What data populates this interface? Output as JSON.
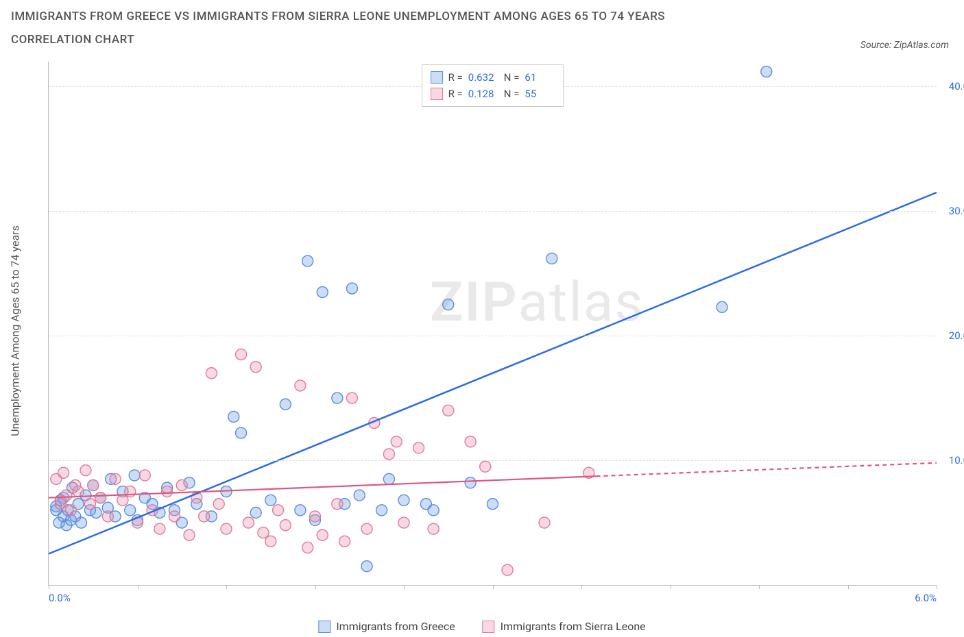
{
  "title_line1": "IMMIGRANTS FROM GREECE VS IMMIGRANTS FROM SIERRA LEONE UNEMPLOYMENT AMONG AGES 65 TO 74 YEARS",
  "title_line2": "CORRELATION CHART",
  "source_prefix": "Source: ",
  "source_name": "ZipAtlas.com",
  "y_axis_label": "Unemployment Among Ages 65 to 74 years",
  "watermark_bold": "ZIP",
  "watermark_rest": "atlas",
  "chart": {
    "type": "scatter",
    "xlim": [
      0,
      6
    ],
    "ylim": [
      0,
      42
    ],
    "x_tick_positions": [
      0,
      0.6,
      1.2,
      1.8,
      2.4,
      3.0,
      3.6,
      4.2,
      4.8,
      5.4,
      6.0
    ],
    "x_tick_labels_shown": {
      "0": "0.0%",
      "6": "6.0%"
    },
    "y_ticks": [
      10,
      20,
      30,
      40
    ],
    "y_tick_labels": [
      "10.0%",
      "20.0%",
      "30.0%",
      "40.0%"
    ],
    "background_color": "#ffffff",
    "grid_color": "#dddddd",
    "axis_color": "#bbbbbb",
    "tick_label_color": "#2d6cdf",
    "marker_radius": 8,
    "marker_stroke_width": 1.4,
    "series": [
      {
        "name": "Immigrants from Greece",
        "fill": "rgba(109,158,235,0.35)",
        "stroke": "#5b8dd6",
        "line_color": "#2d6cdf",
        "line_width": 2.5,
        "trend": {
          "x1": 0,
          "y1": 2.5,
          "x2": 6,
          "y2": 31.5,
          "dashed_from_x": null
        },
        "R": "0.632",
        "N": "61",
        "points": [
          [
            0.05,
            6.3
          ],
          [
            0.07,
            5.0
          ],
          [
            0.08,
            6.8
          ],
          [
            0.1,
            5.5
          ],
          [
            0.1,
            7.0
          ],
          [
            0.12,
            4.8
          ],
          [
            0.13,
            6.0
          ],
          [
            0.15,
            5.2
          ],
          [
            0.16,
            7.8
          ],
          [
            0.18,
            5.5
          ],
          [
            0.2,
            6.5
          ],
          [
            0.22,
            5.0
          ],
          [
            0.25,
            7.2
          ],
          [
            0.28,
            6.0
          ],
          [
            0.3,
            8.0
          ],
          [
            0.32,
            5.8
          ],
          [
            0.35,
            7.0
          ],
          [
            0.4,
            6.2
          ],
          [
            0.42,
            8.5
          ],
          [
            0.45,
            5.5
          ],
          [
            0.5,
            7.5
          ],
          [
            0.55,
            6.0
          ],
          [
            0.58,
            8.8
          ],
          [
            0.6,
            5.2
          ],
          [
            0.65,
            7.0
          ],
          [
            0.7,
            6.5
          ],
          [
            0.75,
            5.8
          ],
          [
            0.8,
            7.8
          ],
          [
            0.85,
            6.0
          ],
          [
            0.9,
            5.0
          ],
          [
            0.95,
            8.2
          ],
          [
            1.0,
            6.5
          ],
          [
            1.1,
            5.5
          ],
          [
            1.2,
            7.5
          ],
          [
            1.25,
            13.5
          ],
          [
            1.3,
            12.2
          ],
          [
            1.4,
            5.8
          ],
          [
            1.5,
            6.8
          ],
          [
            1.6,
            14.5
          ],
          [
            1.7,
            6.0
          ],
          [
            1.75,
            26.0
          ],
          [
            1.8,
            5.2
          ],
          [
            1.85,
            23.5
          ],
          [
            1.95,
            15.0
          ],
          [
            2.0,
            6.5
          ],
          [
            2.05,
            23.8
          ],
          [
            2.1,
            7.2
          ],
          [
            2.15,
            1.5
          ],
          [
            2.25,
            6.0
          ],
          [
            2.3,
            8.5
          ],
          [
            2.4,
            6.8
          ],
          [
            2.55,
            6.5
          ],
          [
            2.6,
            6.0
          ],
          [
            2.7,
            22.5
          ],
          [
            2.85,
            8.2
          ],
          [
            3.0,
            6.5
          ],
          [
            3.35,
            41.0
          ],
          [
            3.4,
            26.2
          ],
          [
            4.55,
            22.3
          ],
          [
            4.85,
            41.2
          ],
          [
            0.05,
            6.0
          ]
        ]
      },
      {
        "name": "Immigrants from Sierra Leone",
        "fill": "rgba(236,145,172,0.35)",
        "stroke": "#e07a9b",
        "line_color": "#e2557f",
        "line_width": 2.2,
        "trend": {
          "x1": 0,
          "y1": 7.0,
          "x2": 6,
          "y2": 9.8,
          "dashed_from_x": 3.7
        },
        "R": "0.128",
        "N": "55",
        "points": [
          [
            0.05,
            8.5
          ],
          [
            0.08,
            6.5
          ],
          [
            0.1,
            9.0
          ],
          [
            0.12,
            7.2
          ],
          [
            0.15,
            6.0
          ],
          [
            0.18,
            8.0
          ],
          [
            0.2,
            7.5
          ],
          [
            0.25,
            9.2
          ],
          [
            0.28,
            6.5
          ],
          [
            0.3,
            8.0
          ],
          [
            0.35,
            7.0
          ],
          [
            0.4,
            5.5
          ],
          [
            0.45,
            8.5
          ],
          [
            0.5,
            6.8
          ],
          [
            0.55,
            7.5
          ],
          [
            0.6,
            5.0
          ],
          [
            0.65,
            8.8
          ],
          [
            0.7,
            6.0
          ],
          [
            0.75,
            4.5
          ],
          [
            0.8,
            7.5
          ],
          [
            0.85,
            5.5
          ],
          [
            0.9,
            8.0
          ],
          [
            0.95,
            4.0
          ],
          [
            1.0,
            7.0
          ],
          [
            1.05,
            5.5
          ],
          [
            1.1,
            17.0
          ],
          [
            1.15,
            6.5
          ],
          [
            1.2,
            4.5
          ],
          [
            1.3,
            18.5
          ],
          [
            1.35,
            5.0
          ],
          [
            1.4,
            17.5
          ],
          [
            1.5,
            3.5
          ],
          [
            1.55,
            6.0
          ],
          [
            1.6,
            4.8
          ],
          [
            1.7,
            16.0
          ],
          [
            1.75,
            3.0
          ],
          [
            1.8,
            5.5
          ],
          [
            1.85,
            4.0
          ],
          [
            1.95,
            6.5
          ],
          [
            2.0,
            3.5
          ],
          [
            2.05,
            15.0
          ],
          [
            2.15,
            4.5
          ],
          [
            2.2,
            13.0
          ],
          [
            2.3,
            10.5
          ],
          [
            2.4,
            5.0
          ],
          [
            2.5,
            11.0
          ],
          [
            2.6,
            4.5
          ],
          [
            2.7,
            14.0
          ],
          [
            2.85,
            11.5
          ],
          [
            2.95,
            9.5
          ],
          [
            3.1,
            1.2
          ],
          [
            3.35,
            5.0
          ],
          [
            3.65,
            9.0
          ],
          [
            2.35,
            11.5
          ],
          [
            1.45,
            4.2
          ]
        ]
      }
    ]
  },
  "legend_top": {
    "R_label": "R =",
    "N_label": "N ="
  },
  "legend_bottom": [
    {
      "label": "Immigrants from Greece",
      "fill": "rgba(109,158,235,0.35)",
      "stroke": "#5b8dd6"
    },
    {
      "label": "Immigrants from Sierra Leone",
      "fill": "rgba(236,145,172,0.35)",
      "stroke": "#e07a9b"
    }
  ]
}
